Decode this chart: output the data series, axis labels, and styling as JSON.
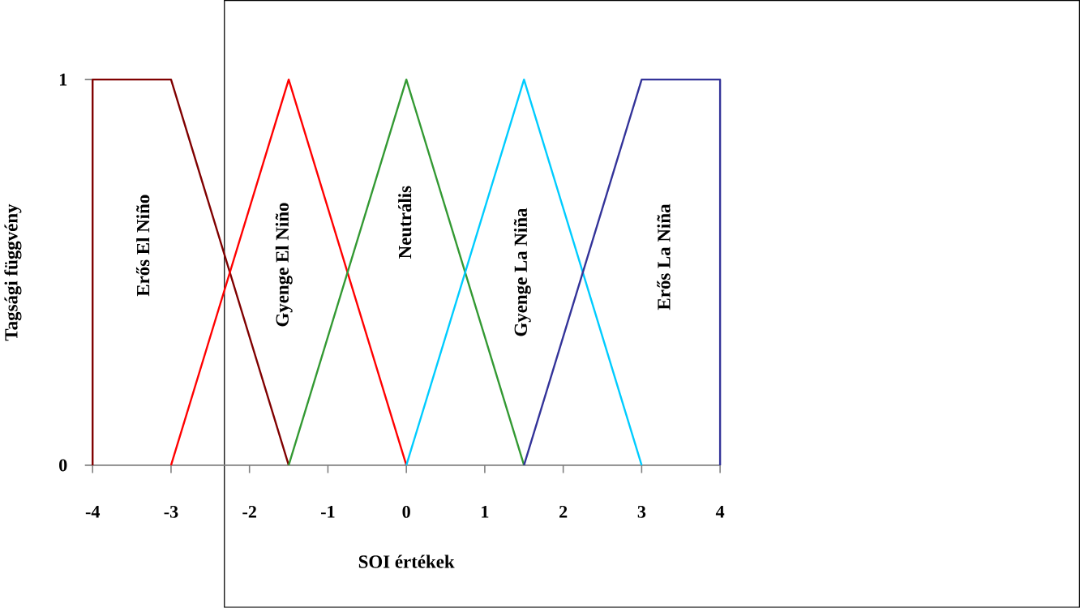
{
  "chart_data": {
    "type": "line",
    "xlabel": "SOI értékek",
    "ylabel": "Tagsági függvény",
    "xlim": [
      -4,
      4
    ],
    "xticks": [
      -4,
      -3,
      -2,
      -1,
      0,
      1,
      2,
      3,
      4
    ],
    "ylim": [
      0,
      1
    ],
    "yticks": [
      0,
      1
    ],
    "grid": false,
    "legend": false,
    "marker": "none",
    "line_style": "solid",
    "series": [
      {
        "name": "Erős El Niño",
        "color": "#800000",
        "x": [
          -4,
          -4,
          -3,
          -1.5
        ],
        "values": [
          0,
          1,
          1,
          0
        ]
      },
      {
        "name": "Gyenge El Niño",
        "color": "#ff0000",
        "x": [
          -3,
          -1.5,
          0
        ],
        "values": [
          0,
          1,
          0
        ]
      },
      {
        "name": "Neutrális",
        "color": "#339933",
        "x": [
          -1.5,
          0,
          1.5
        ],
        "values": [
          0,
          1,
          0
        ]
      },
      {
        "name": "Gyenge La Niña",
        "color": "#00ccff",
        "x": [
          0,
          1.5,
          3
        ],
        "values": [
          0,
          1,
          0
        ]
      },
      {
        "name": "Erős La Niña",
        "color": "#333399",
        "x": [
          1.5,
          3,
          4,
          4
        ],
        "values": [
          0,
          1,
          1,
          0
        ]
      }
    ]
  }
}
